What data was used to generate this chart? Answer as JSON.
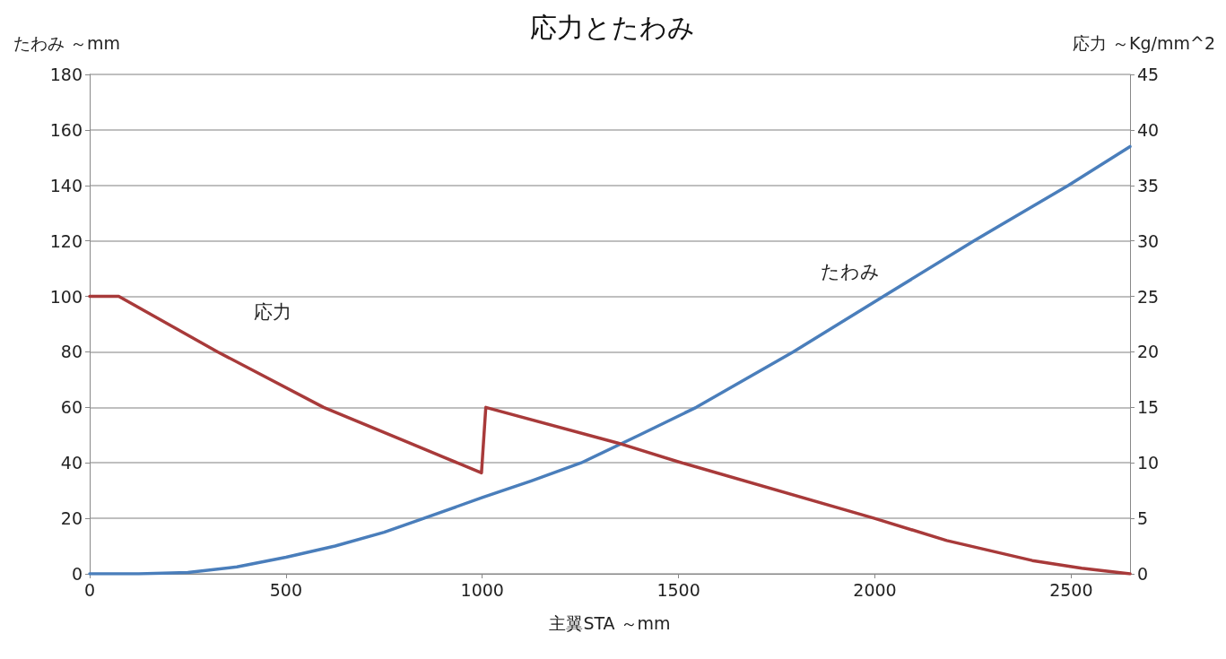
{
  "chart_data": {
    "type": "line",
    "title": "応力とたわみ",
    "xlabel": "主翼STA ～mm",
    "ylabel": "たわみ ～mm",
    "y2label": "応力 ～Kg/mm^2",
    "xlim": [
      0,
      2650
    ],
    "xticks": [
      0,
      500,
      1000,
      1500,
      2000,
      2500
    ],
    "ylim": [
      0,
      180
    ],
    "yticks": [
      0,
      20,
      40,
      60,
      80,
      100,
      120,
      140,
      160,
      180
    ],
    "y2lim": [
      0,
      45
    ],
    "y2ticks": [
      0,
      5,
      10,
      15,
      20,
      25,
      30,
      35,
      40,
      45
    ],
    "grid": "y",
    "marker": "none",
    "line_style": "solid",
    "series": [
      {
        "name": "たわみ",
        "color": "#4a7ebb",
        "x": [
          0,
          125,
          250,
          375,
          500,
          625,
          750,
          851,
          1000,
          1125,
          1252,
          1400,
          1545,
          1792,
          2022,
          2252,
          2493,
          2650
        ],
        "values": [
          0,
          0,
          0.5,
          2.5,
          6,
          10,
          15,
          20,
          27.5,
          33.5,
          40,
          50,
          60,
          80,
          100,
          120,
          140,
          154
        ]
      },
      {
        "name": "応力",
        "color": "#a83a3a",
        "axis": "y2",
        "x": [
          0,
          74,
          326,
          596,
          800,
          998,
          1009,
          1344,
          1499,
          1999,
          2183,
          2401,
          2527,
          2650
        ],
        "values": [
          25,
          25,
          20,
          15,
          12,
          9.1,
          15,
          11.8,
          10.1,
          5,
          3,
          1.2,
          0.5,
          0
        ]
      }
    ]
  }
}
